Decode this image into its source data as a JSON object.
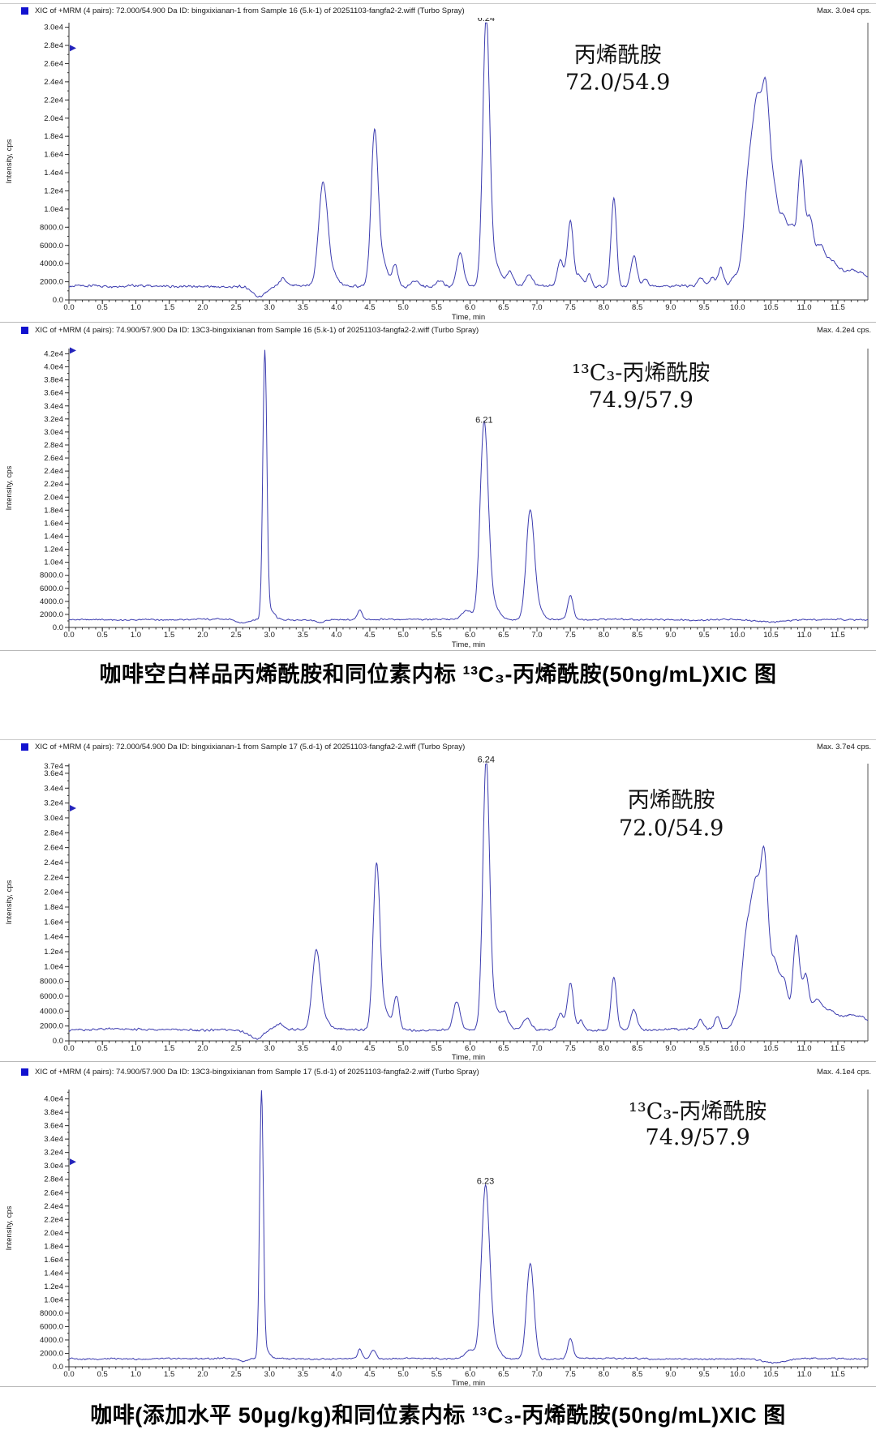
{
  "figure": {
    "captions": [
      "咖啡空白样品丙烯酰胺和同位素内标 ¹³C₃-丙烯酰胺(50ng/mL)XIC 图",
      "咖啡(添加水平 50μg/kg)和同位素内标 ¹³C₃-丙烯酰胺(50ng/mL)XIC 图"
    ]
  },
  "colors": {
    "trace": "#3c3caf",
    "legend_square": "#1212cf",
    "cursor": "#2424bb",
    "axis": "#333333",
    "text": "#1a1a1a"
  },
  "x_axis": {
    "label": "Time, min",
    "range": [
      0,
      11.95
    ],
    "tick_step": 0.5,
    "minor_step": 0.1,
    "tick_labels": [
      "0.0",
      "0.5",
      "1.0",
      "1.5",
      "2.0",
      "2.5",
      "3.0",
      "3.5",
      "4.0",
      "4.5",
      "5.0",
      "5.5",
      "6.0",
      "6.5",
      "7.0",
      "7.5",
      "8.0",
      "8.5",
      "9.0",
      "9.5",
      "10.0",
      "10.5",
      "11.0",
      "11.5"
    ]
  },
  "chart_data": [
    {
      "type": "line",
      "header": "XIC of +MRM (4 pairs): 72.000/54.900 Da ID: bingxixianan-1 from Sample 16 (5.k-1) of 20251103-fangfa2-2.wiff (Turbo Spray)",
      "max_label": "Max. 3.0e4 cps.",
      "xlabel": "Time, min",
      "ylabel": "Intensity, cps",
      "xlim": [
        0,
        11.95
      ],
      "ylim": [
        0,
        30500
      ],
      "yticks": [
        [
          30000,
          "3.0e4"
        ],
        [
          28000,
          "2.8e4"
        ],
        [
          26000,
          "2.6e4"
        ],
        [
          24000,
          "2.4e4"
        ],
        [
          22000,
          "2.2e4"
        ],
        [
          20000,
          "2.0e4"
        ],
        [
          18000,
          "1.8e4"
        ],
        [
          16000,
          "1.6e4"
        ],
        [
          14000,
          "1.4e4"
        ],
        [
          12000,
          "1.2e4"
        ],
        [
          10000,
          "1.0e4"
        ],
        [
          8000,
          "8000.0"
        ],
        [
          6000,
          "6000.0"
        ],
        [
          4000,
          "4000.0"
        ],
        [
          2000,
          "2000.0"
        ],
        [
          0,
          "0.0"
        ]
      ],
      "ytick_minor_step": 1000,
      "baseline": 1500,
      "noise": 230,
      "peak_label": {
        "text": "6.24",
        "t": 6.24
      },
      "cursor_y": 27700,
      "annotation": {
        "line1": "丙烯酰胺",
        "line2": "72.0/54.9",
        "x_frac": 0.687,
        "y1_frac": 0.117,
        "y2_frac": 0.215
      },
      "peaks": [
        [
          2.85,
          -1150,
          0.1
        ],
        [
          3.2,
          800,
          0.05
        ],
        [
          3.8,
          10800,
          0.065
        ],
        [
          3.92,
          1500,
          0.09
        ],
        [
          4.57,
          15400,
          0.05
        ],
        [
          4.66,
          3200,
          0.09
        ],
        [
          4.88,
          2300,
          0.04
        ],
        [
          5.18,
          700,
          0.05
        ],
        [
          5.55,
          600,
          0.05
        ],
        [
          5.85,
          3700,
          0.05
        ],
        [
          6.24,
          28700,
          0.05
        ],
        [
          6.35,
          2800,
          0.09
        ],
        [
          6.6,
          1500,
          0.05
        ],
        [
          6.88,
          1300,
          0.05
        ],
        [
          7.35,
          2900,
          0.045
        ],
        [
          7.5,
          7300,
          0.045
        ],
        [
          7.64,
          1300,
          0.04
        ],
        [
          7.78,
          1500,
          0.035
        ],
        [
          8.15,
          9800,
          0.04
        ],
        [
          8.45,
          3400,
          0.045
        ],
        [
          8.62,
          800,
          0.04
        ],
        [
          9.45,
          900,
          0.04
        ],
        [
          9.62,
          900,
          0.04
        ],
        [
          9.75,
          2000,
          0.04
        ],
        [
          9.95,
          1000,
          0.05
        ],
        [
          10.18,
          13000,
          0.08
        ],
        [
          10.3,
          14500,
          0.06
        ],
        [
          10.42,
          19000,
          0.06
        ],
        [
          10.55,
          9500,
          0.07
        ],
        [
          10.7,
          6500,
          0.06
        ],
        [
          10.82,
          5500,
          0.05
        ],
        [
          10.95,
          13500,
          0.05
        ],
        [
          11.08,
          6800,
          0.05
        ],
        [
          11.22,
          3800,
          0.07
        ],
        [
          11.38,
          2000,
          0.1
        ],
        [
          11.6,
          1300,
          0.2
        ],
        [
          11.85,
          900,
          0.15
        ]
      ]
    },
    {
      "type": "line",
      "header": "XIC of +MRM (4 pairs): 74.900/57.900 Da ID: 13C3-bingxixianan from Sample 16 (5.k-1) of 20251103-fangfa2-2.wiff (Turbo Spray)",
      "max_label": "Max. 4.2e4 cps.",
      "xlabel": "Time, min",
      "ylabel": "Intensity, cps",
      "xlim": [
        0,
        11.95
      ],
      "ylim": [
        0,
        42800
      ],
      "yticks": [
        [
          42000,
          "4.2e4"
        ],
        [
          40000,
          "4.0e4"
        ],
        [
          38000,
          "3.8e4"
        ],
        [
          36000,
          "3.6e4"
        ],
        [
          34000,
          "3.4e4"
        ],
        [
          32000,
          "3.2e4"
        ],
        [
          30000,
          "3.0e4"
        ],
        [
          28000,
          "2.8e4"
        ],
        [
          26000,
          "2.6e4"
        ],
        [
          24000,
          "2.4e4"
        ],
        [
          22000,
          "2.2e4"
        ],
        [
          20000,
          "2.0e4"
        ],
        [
          18000,
          "1.8e4"
        ],
        [
          16000,
          "1.6e4"
        ],
        [
          14000,
          "1.4e4"
        ],
        [
          12000,
          "1.2e4"
        ],
        [
          10000,
          "1.0e4"
        ],
        [
          8000,
          "8000.0"
        ],
        [
          6000,
          "6000.0"
        ],
        [
          4000,
          "4000.0"
        ],
        [
          2000,
          "2000.0"
        ],
        [
          0,
          "0.0"
        ]
      ],
      "ytick_minor_step": 1000,
      "baseline": 1200,
      "noise": 190,
      "peak_label": {
        "text": "6.21",
        "t": 6.21
      },
      "cursor_y": 42500,
      "annotation": {
        "line1": "¹³C₃-丙烯酰胺",
        "line2": "74.9/57.9",
        "x_frac": 0.716,
        "y1_frac": 0.087,
        "y2_frac": 0.184
      },
      "peaks": [
        [
          2.6,
          -500,
          0.08
        ],
        [
          2.93,
          41000,
          0.03
        ],
        [
          3.02,
          1300,
          0.06
        ],
        [
          3.75,
          -500,
          0.06
        ],
        [
          4.35,
          1450,
          0.035
        ],
        [
          5.95,
          1500,
          0.07
        ],
        [
          6.21,
          29500,
          0.06
        ],
        [
          6.33,
          2500,
          0.09
        ],
        [
          6.9,
          16800,
          0.06
        ],
        [
          7.03,
          1500,
          0.06
        ],
        [
          7.5,
          3700,
          0.04
        ],
        [
          10.55,
          -400,
          0.2
        ]
      ]
    },
    {
      "type": "line",
      "header": "XIC of +MRM (4 pairs): 72.000/54.900 Da ID: bingxixianan-1 from Sample 17 (5.d-1) of 20251103-fangfa2-2.wiff (Turbo Spray)",
      "max_label": "Max. 3.7e4 cps.",
      "xlabel": "Time, min",
      "ylabel": "Intensity, cps",
      "xlim": [
        0,
        11.95
      ],
      "ylim": [
        0,
        37300
      ],
      "yticks": [
        [
          37000,
          "3.7e4"
        ],
        [
          36000,
          "3.6e4"
        ],
        [
          34000,
          "3.4e4"
        ],
        [
          32000,
          "3.2e4"
        ],
        [
          30000,
          "3.0e4"
        ],
        [
          28000,
          "2.8e4"
        ],
        [
          26000,
          "2.6e4"
        ],
        [
          24000,
          "2.4e4"
        ],
        [
          22000,
          "2.2e4"
        ],
        [
          20000,
          "2.0e4"
        ],
        [
          18000,
          "1.8e4"
        ],
        [
          16000,
          "1.6e4"
        ],
        [
          14000,
          "1.4e4"
        ],
        [
          12000,
          "1.2e4"
        ],
        [
          10000,
          "1.0e4"
        ],
        [
          8000,
          "8000.0"
        ],
        [
          6000,
          "6000.0"
        ],
        [
          4000,
          "4000.0"
        ],
        [
          2000,
          "2000.0"
        ],
        [
          0,
          "0.0"
        ]
      ],
      "ytick_minor_step": 1000,
      "baseline": 1500,
      "noise": 240,
      "peak_label": {
        "text": "6.24",
        "t": 6.24
      },
      "cursor_y": 31300,
      "annotation": {
        "line1": "丙烯酰胺",
        "line2": "72.0/54.9",
        "x_frac": 0.754,
        "y1_frac": 0.131,
        "y2_frac": 0.233
      },
      "peaks": [
        [
          2.8,
          -1200,
          0.1
        ],
        [
          3.15,
          700,
          0.06
        ],
        [
          3.7,
          10300,
          0.06
        ],
        [
          3.82,
          1200,
          0.08
        ],
        [
          4.6,
          21800,
          0.05
        ],
        [
          4.72,
          2500,
          0.08
        ],
        [
          4.9,
          4400,
          0.04
        ],
        [
          5.8,
          3800,
          0.05
        ],
        [
          6.24,
          35300,
          0.05
        ],
        [
          6.36,
          2800,
          0.09
        ],
        [
          6.52,
          1700,
          0.05
        ],
        [
          6.85,
          1500,
          0.06
        ],
        [
          7.35,
          2100,
          0.045
        ],
        [
          7.5,
          6200,
          0.045
        ],
        [
          7.66,
          1300,
          0.04
        ],
        [
          8.15,
          7200,
          0.04
        ],
        [
          8.45,
          2700,
          0.045
        ],
        [
          9.45,
          1300,
          0.04
        ],
        [
          9.7,
          1800,
          0.04
        ],
        [
          9.95,
          900,
          0.05
        ],
        [
          10.15,
          13500,
          0.08
        ],
        [
          10.28,
          15000,
          0.06
        ],
        [
          10.4,
          21500,
          0.055
        ],
        [
          10.55,
          9000,
          0.07
        ],
        [
          10.7,
          6000,
          0.06
        ],
        [
          10.88,
          12500,
          0.05
        ],
        [
          11.02,
          7000,
          0.05
        ],
        [
          11.18,
          3500,
          0.07
        ],
        [
          11.35,
          2000,
          0.1
        ],
        [
          11.6,
          1500,
          0.2
        ],
        [
          11.85,
          1000,
          0.15
        ]
      ]
    },
    {
      "type": "line",
      "header": "XIC of +MRM (4 pairs): 74.900/57.900 Da ID: 13C3-bingxixianan from Sample 17 (5.d-1) of 20251103-fangfa2-2.wiff (Turbo Spray)",
      "max_label": "Max. 4.1e4 cps.",
      "xlabel": "Time, min",
      "ylabel": "Intensity, cps",
      "xlim": [
        0,
        11.95
      ],
      "ylim": [
        0,
        41400
      ],
      "yticks": [
        [
          40000,
          "4.0e4"
        ],
        [
          38000,
          "3.8e4"
        ],
        [
          36000,
          "3.6e4"
        ],
        [
          34000,
          "3.4e4"
        ],
        [
          32000,
          "3.2e4"
        ],
        [
          30000,
          "3.0e4"
        ],
        [
          28000,
          "2.8e4"
        ],
        [
          26000,
          "2.6e4"
        ],
        [
          24000,
          "2.4e4"
        ],
        [
          22000,
          "2.2e4"
        ],
        [
          20000,
          "2.0e4"
        ],
        [
          18000,
          "1.8e4"
        ],
        [
          16000,
          "1.6e4"
        ],
        [
          14000,
          "1.4e4"
        ],
        [
          12000,
          "1.2e4"
        ],
        [
          10000,
          "1.0e4"
        ],
        [
          8000,
          "8000.0"
        ],
        [
          6000,
          "6000.0"
        ],
        [
          4000,
          "4000.0"
        ],
        [
          2000,
          "2000.0"
        ],
        [
          0,
          "0.0"
        ]
      ],
      "ytick_minor_step": 1000,
      "baseline": 1200,
      "noise": 190,
      "peak_label": {
        "text": "6.23",
        "t": 6.23
      },
      "cursor_y": 30600,
      "annotation": {
        "line1": "¹³C₃-丙烯酰胺",
        "line2": "74.9/57.9",
        "x_frac": 0.787,
        "y1_frac": 0.079,
        "y2_frac": 0.173
      },
      "peaks": [
        [
          2.6,
          -400,
          0.06
        ],
        [
          2.88,
          39800,
          0.028
        ],
        [
          2.96,
          1200,
          0.05
        ],
        [
          4.35,
          1500,
          0.03
        ],
        [
          4.55,
          1300,
          0.04
        ],
        [
          6.0,
          1300,
          0.07
        ],
        [
          6.23,
          25400,
          0.06
        ],
        [
          6.36,
          2200,
          0.08
        ],
        [
          6.9,
          14300,
          0.055
        ],
        [
          7.5,
          3000,
          0.04
        ],
        [
          10.55,
          -600,
          0.18
        ]
      ]
    }
  ]
}
